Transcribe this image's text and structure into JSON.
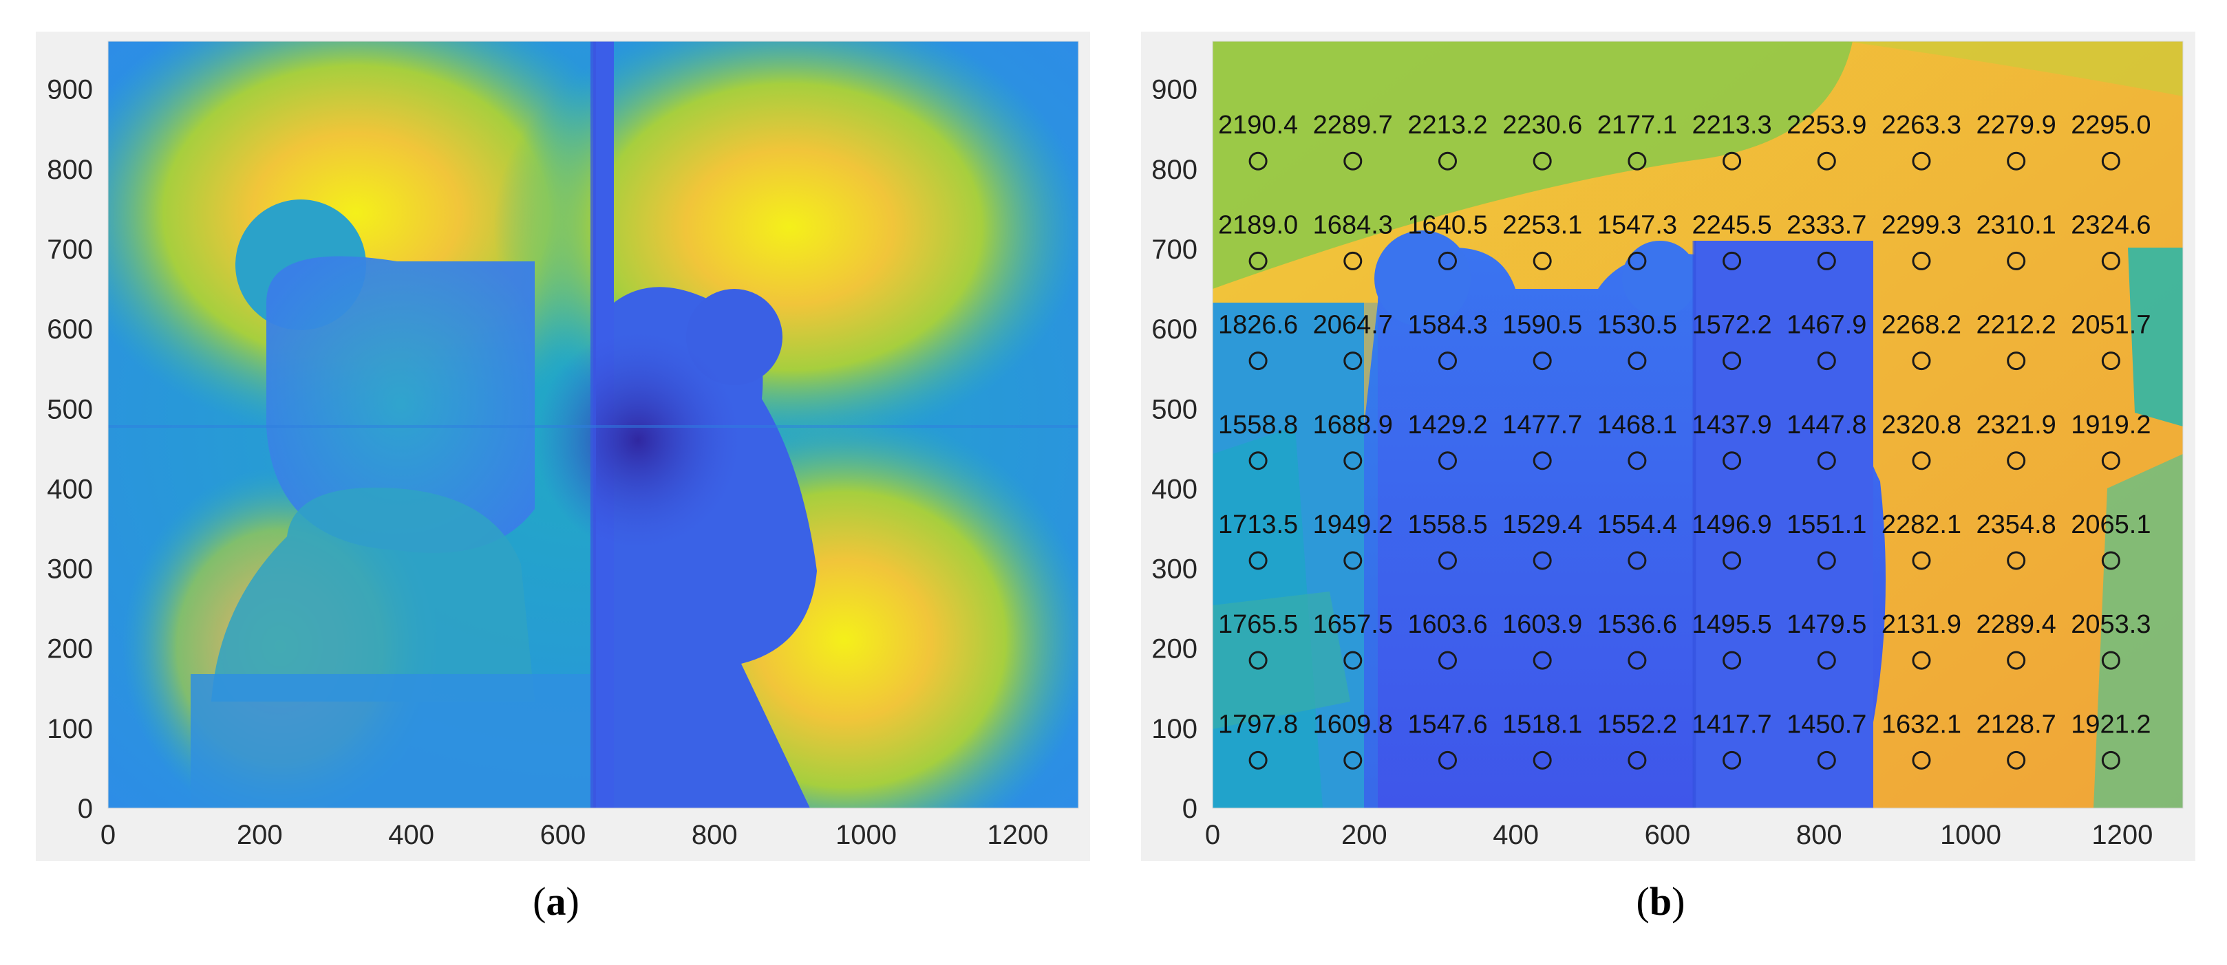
{
  "chart_data": [
    {
      "type": "heatmap",
      "panel_label": "a",
      "caption": "(a)",
      "xlim": [
        0,
        1280
      ],
      "ylim": [
        0,
        960
      ],
      "x_ticks": [
        0,
        200,
        400,
        600,
        800,
        1000,
        1200
      ],
      "y_ticks": [
        0,
        100,
        200,
        300,
        400,
        500,
        600,
        700,
        800,
        900
      ],
      "colormap": "parula",
      "grid": false
    },
    {
      "type": "heatmap",
      "panel_label": "b",
      "caption": "(b)",
      "xlim": [
        0,
        1280
      ],
      "ylim": [
        0,
        960
      ],
      "x_ticks": [
        0,
        200,
        400,
        600,
        800,
        1000,
        1200
      ],
      "y_ticks": [
        0,
        100,
        200,
        300,
        400,
        500,
        600,
        700,
        800,
        900
      ],
      "colormap": "parula",
      "grid": false,
      "sample_x": [
        60,
        185,
        310,
        435,
        560,
        685,
        810,
        935,
        1060,
        1185
      ],
      "sample_y": [
        810,
        685,
        560,
        435,
        310,
        185,
        60
      ],
      "values": [
        [
          "2190.4",
          "2289.7",
          "2213.2",
          "2230.6",
          "2177.1",
          "2213.3",
          "2253.9",
          "2263.3",
          "2279.9",
          "2295.0"
        ],
        [
          "2189.0",
          "1684.3",
          "1640.5",
          "2253.1",
          "1547.3",
          "2245.5",
          "2333.7",
          "2299.3",
          "2310.1",
          "2324.6"
        ],
        [
          "1826.6",
          "2064.7",
          "1584.3",
          "1590.5",
          "1530.5",
          "1572.2",
          "1467.9",
          "2268.2",
          "2212.2",
          "2051.7"
        ],
        [
          "1558.8",
          "1688.9",
          "1429.2",
          "1477.7",
          "1468.1",
          "1437.9",
          "1447.8",
          "2320.8",
          "2321.9",
          "1919.2"
        ],
        [
          "1713.5",
          "1949.2",
          "1558.5",
          "1529.4",
          "1554.4",
          "1496.9",
          "1551.1",
          "2282.1",
          "2354.8",
          "2065.1"
        ],
        [
          "1765.5",
          "1657.5",
          "1603.6",
          "1603.9",
          "1536.6",
          "1495.5",
          "1479.5",
          "2131.9",
          "2289.4",
          "2053.3"
        ],
        [
          "1797.8",
          "1609.8",
          "1547.6",
          "1518.1",
          "1552.2",
          "1417.7",
          "1450.7",
          "1632.1",
          "2128.7",
          "1921.2"
        ]
      ]
    }
  ],
  "colors": {
    "figure_background": "#f0f0f0",
    "marker": "#1a1a1a",
    "blue_low": "#3d63f2",
    "blue_mid": "#2f8fe8",
    "teal": "#19b9ac",
    "green": "#7dc94a",
    "orange": "#f5b83a",
    "yellow": "#f4f01a"
  }
}
